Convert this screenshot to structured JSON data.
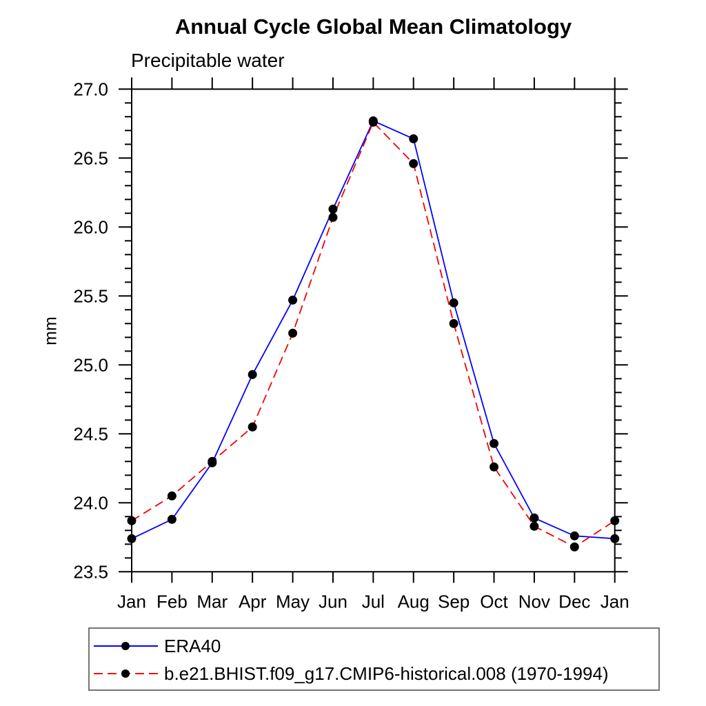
{
  "chart_data": {
    "type": "line",
    "title": "Annual Cycle Global Mean Climatology",
    "subtitle": "Precipitable water",
    "ylabel": "mm",
    "xlabel": "",
    "categories": [
      "Jan",
      "Feb",
      "Mar",
      "Apr",
      "May",
      "Jun",
      "Jul",
      "Aug",
      "Sep",
      "Oct",
      "Nov",
      "Dec",
      "Jan"
    ],
    "ylim": [
      23.5,
      27.0
    ],
    "ytick_step": 0.5,
    "ytick_minor_step": 0.1,
    "ytick_labels": [
      "23.5",
      "24.0",
      "24.5",
      "25.0",
      "25.5",
      "26.0",
      "26.5",
      "27.0"
    ],
    "grid": false,
    "legend_position": "bottom-left-outside",
    "axis_color": "#000000",
    "marker_color": "#000000",
    "series": [
      {
        "name": "ERA40",
        "color": "#0000ff",
        "line_style": "solid",
        "marker": "filled-circle",
        "values": [
          23.74,
          23.88,
          24.29,
          24.93,
          25.47,
          26.13,
          26.77,
          26.64,
          25.45,
          24.43,
          23.89,
          23.76,
          23.74
        ]
      },
      {
        "name": "b.e21.BHIST.f09_g17.CMIP6-historical.008 (1970-1994)",
        "color": "#f40000",
        "line_style": "dashed",
        "marker": "filled-circle",
        "values": [
          23.87,
          24.05,
          24.3,
          24.55,
          25.23,
          26.07,
          26.76,
          26.46,
          25.3,
          24.26,
          23.83,
          23.68,
          23.87
        ]
      }
    ]
  }
}
